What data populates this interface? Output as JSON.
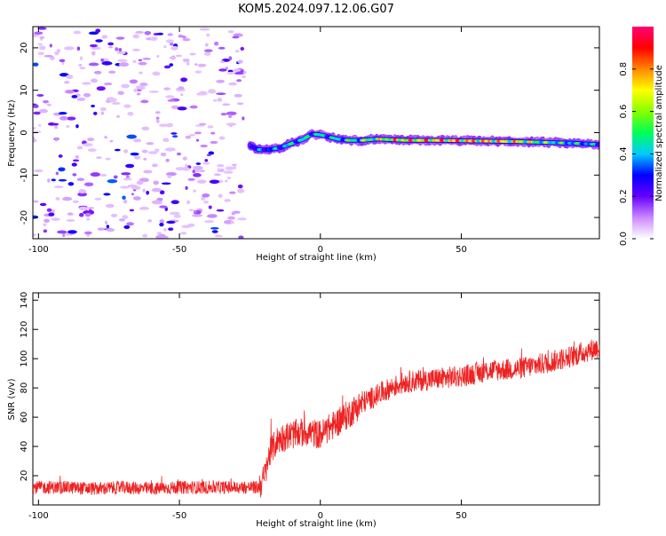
{
  "figure": {
    "title": "KOM5.2024.097.12.06.G07"
  },
  "chart_data": [
    {
      "type": "heatmap",
      "xlabel": "Height of straight line (km)",
      "ylabel": "Frequency (Hz)",
      "xlim": [
        -102,
        99
      ],
      "ylim": [
        -25,
        25
      ],
      "xticks": [
        -100,
        -50,
        0,
        50
      ],
      "yticks": [
        -20,
        -10,
        0,
        10,
        20
      ],
      "colorbar": {
        "label": "Normalized spectral amplitude",
        "range": [
          0,
          1
        ],
        "ticks": [
          0.0,
          0.2,
          0.4,
          0.6,
          0.8
        ],
        "colors": [
          "#ffffff",
          "#cc88ff",
          "#6600ff",
          "#0000ff",
          "#00ccff",
          "#00ff55",
          "#88ff00",
          "#ffff00",
          "#ff8800",
          "#ff0000",
          "#ff0077"
        ]
      },
      "signal_track": {
        "x": [
          -25,
          -22,
          -18,
          -14,
          -10,
          -6,
          -3,
          0,
          3,
          6,
          10,
          15,
          20,
          30,
          40,
          50,
          60,
          70,
          80,
          90,
          99
        ],
        "freq": [
          -3,
          -4,
          -4,
          -3.5,
          -2.5,
          -1.5,
          -0.3,
          -0.5,
          -1,
          -1.5,
          -1.8,
          -1.8,
          -1.5,
          -1.8,
          -1.8,
          -1.9,
          -2,
          -2.1,
          -2.3,
          -2.5,
          -2.8
        ],
        "amplitude": [
          0.3,
          0.4,
          0.4,
          0.45,
          0.5,
          0.5,
          0.5,
          0.5,
          0.5,
          0.5,
          0.55,
          0.6,
          0.7,
          0.85,
          0.9,
          0.9,
          0.85,
          0.8,
          0.6,
          0.5,
          0.45
        ]
      },
      "noise_region": {
        "x": [
          -102,
          -27
        ],
        "amplitude": [
          0.05,
          0.35
        ]
      }
    },
    {
      "type": "line",
      "xlabel": "Height of straight line (km)",
      "ylabel": "SNR (v/v)",
      "xlim": [
        -102,
        99
      ],
      "ylim": [
        0,
        145
      ],
      "xticks": [
        -100,
        -50,
        0,
        50
      ],
      "yticks": [
        20,
        40,
        60,
        80,
        100,
        120,
        140
      ],
      "series": [
        {
          "color": "#ee2222",
          "x": [
            -102,
            -90,
            -80,
            -70,
            -60,
            -50,
            -40,
            -30,
            -22,
            -20,
            -18,
            -15,
            -10,
            -5,
            0,
            5,
            10,
            15,
            20,
            25,
            30,
            40,
            50,
            60,
            70,
            80,
            90,
            99
          ],
          "values": [
            12,
            12,
            11,
            12,
            11,
            12,
            12,
            12,
            12,
            18,
            35,
            45,
            48,
            50,
            48,
            55,
            62,
            70,
            75,
            80,
            84,
            86,
            88,
            92,
            93,
            97,
            102,
            108
          ]
        }
      ]
    }
  ]
}
